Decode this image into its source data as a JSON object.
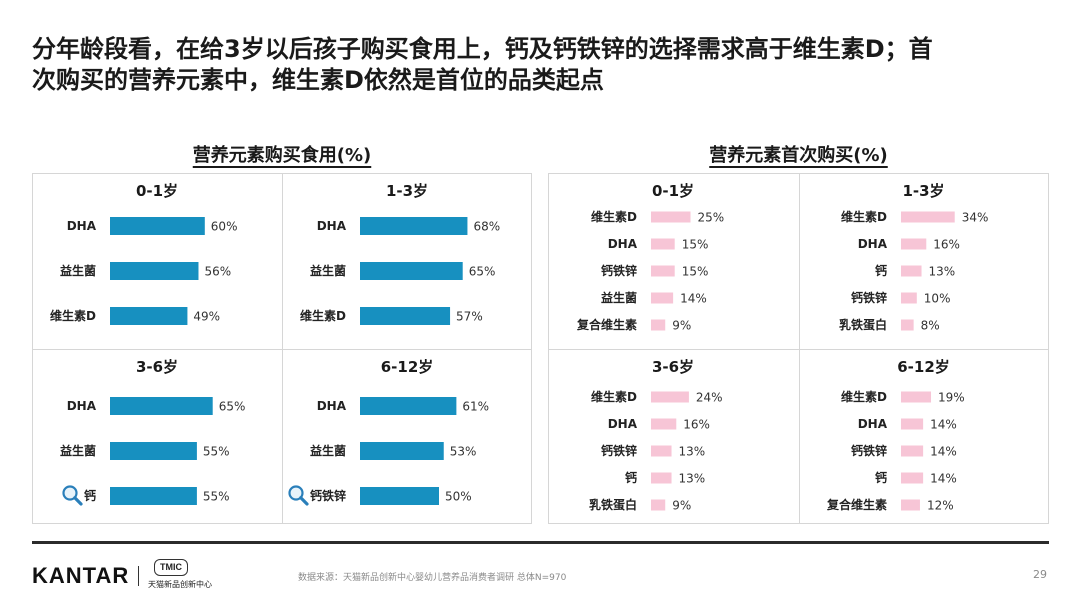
{
  "header": {
    "title_line1": "分年龄段看，在给3岁以后孩子购买食用上，钙及钙铁锌的选择需求高于维生素D；首",
    "title_line2": "次购买的营养元素中，维生素D依然是首位的品类起点"
  },
  "colors": {
    "usage_bar": "#1790c0",
    "first_purchase_bar": "#f7c5d6",
    "border": "#d6d6d6",
    "magnifier": "#2a7fba"
  },
  "chart_data": [
    {
      "type": "bar",
      "orientation": "horizontal",
      "title": "营养元素购买食用(%)",
      "panels": [
        {
          "title": "0-1岁",
          "categories": [
            "DHA",
            "益生菌",
            "维生素D"
          ],
          "values": [
            60,
            56,
            49
          ],
          "value_labels": [
            "60%",
            "56%",
            "49%"
          ]
        },
        {
          "title": "1-3岁",
          "categories": [
            "DHA",
            "益生菌",
            "维生素D"
          ],
          "values": [
            68,
            65,
            57
          ],
          "value_labels": [
            "68%",
            "65%",
            "57%"
          ]
        },
        {
          "title": "3-6岁",
          "categories": [
            "DHA",
            "益生菌",
            "钙"
          ],
          "values": [
            65,
            55,
            55
          ],
          "value_labels": [
            "65%",
            "55%",
            "55%"
          ],
          "highlight_index": 2
        },
        {
          "title": "6-12岁",
          "categories": [
            "DHA",
            "益生菌",
            "钙铁锌"
          ],
          "values": [
            61,
            53,
            50
          ],
          "value_labels": [
            "61%",
            "53%",
            "50%"
          ],
          "highlight_index": 2
        }
      ]
    },
    {
      "type": "bar",
      "orientation": "horizontal",
      "title": "营养元素首次购买(%)",
      "panels": [
        {
          "title": "0-1岁",
          "categories": [
            "维生素D",
            "DHA",
            "钙铁锌",
            "益生菌",
            "复合维生素"
          ],
          "values": [
            25,
            15,
            15,
            14,
            9
          ],
          "value_labels": [
            "25%",
            "15%",
            "15%",
            "14%",
            "9%"
          ]
        },
        {
          "title": "1-3岁",
          "categories": [
            "维生素D",
            "DHA",
            "钙",
            "钙铁锌",
            "乳铁蛋白"
          ],
          "values": [
            34,
            16,
            13,
            10,
            8
          ],
          "value_labels": [
            "34%",
            "16%",
            "13%",
            "10%",
            "8%"
          ]
        },
        {
          "title": "3-6岁",
          "categories": [
            "维生素D",
            "DHA",
            "钙铁锌",
            "钙",
            "乳铁蛋白"
          ],
          "values": [
            24,
            16,
            13,
            13,
            9
          ],
          "value_labels": [
            "24%",
            "16%",
            "13%",
            "13%",
            "9%"
          ]
        },
        {
          "title": "6-12岁",
          "categories": [
            "维生素D",
            "DHA",
            "钙铁锌",
            "钙",
            "复合维生素"
          ],
          "values": [
            19,
            14,
            14,
            14,
            12
          ],
          "value_labels": [
            "19%",
            "14%",
            "14%",
            "14%",
            "12%"
          ]
        }
      ]
    }
  ],
  "footer": {
    "logo_text": "KANTAR",
    "tmic_badge": "TMIC",
    "tmic_name": "天猫新品创新中心",
    "source": "数据来源：天猫新品创新中心婴幼儿营养品消费者调研  总体N=970",
    "page_number": "29"
  }
}
